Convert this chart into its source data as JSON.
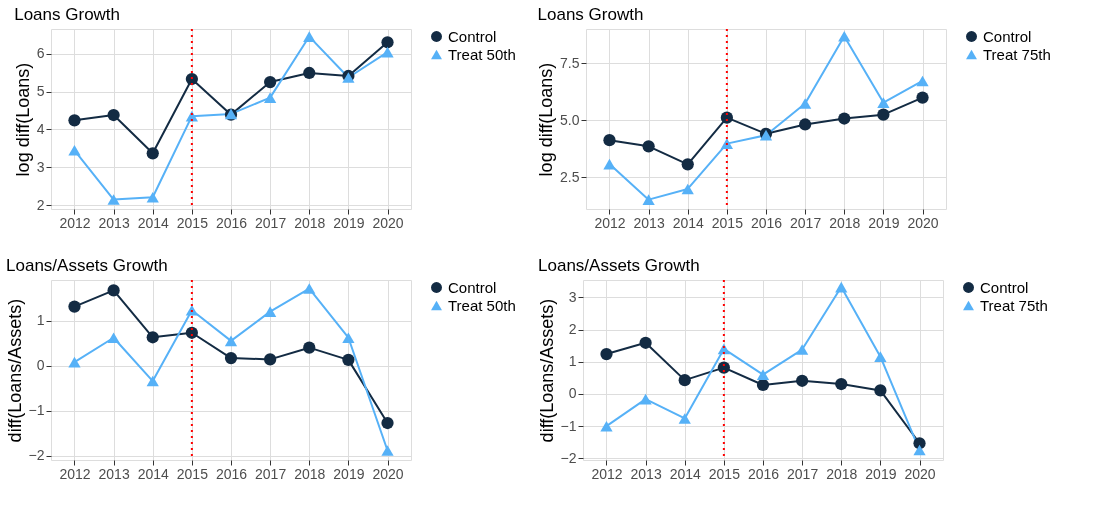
{
  "chart_data": [
    {
      "type": "line",
      "title": "Loans Growth",
      "ylabel": "log diff(Loans)",
      "x": [
        2012,
        2013,
        2014,
        2015,
        2016,
        2017,
        2018,
        2019,
        2020
      ],
      "xlim": [
        2011.4,
        2020.6
      ],
      "xticks": [
        2012,
        2013,
        2014,
        2015,
        2016,
        2017,
        2018,
        2019,
        2020
      ],
      "ylim": [
        1.9,
        6.65
      ],
      "yticks": [
        2,
        3,
        4,
        5,
        6
      ],
      "grid": true,
      "legend": "right",
      "series": [
        {
          "name": "Control",
          "color": "#132b43",
          "marker": "circle",
          "values": [
            4.24,
            4.38,
            3.37,
            5.33,
            4.39,
            5.25,
            5.49,
            5.41,
            6.3
          ]
        },
        {
          "name": "Treat 50th",
          "color": "#56b1f7",
          "marker": "triangle",
          "values": [
            3.45,
            2.15,
            2.21,
            4.35,
            4.41,
            4.84,
            6.45,
            5.37,
            6.04
          ]
        }
      ],
      "ref_lines": [
        {
          "axis": "x",
          "value": 2015,
          "color": "#ff0000",
          "line_style": "dotted"
        }
      ]
    },
    {
      "type": "line",
      "title": "Loans Growth",
      "ylabel": "log diff(Loans)",
      "x": [
        2012,
        2013,
        2014,
        2015,
        2016,
        2017,
        2018,
        2019,
        2020
      ],
      "xlim": [
        2011.4,
        2020.6
      ],
      "xticks": [
        2012,
        2013,
        2014,
        2015,
        2016,
        2017,
        2018,
        2019,
        2020
      ],
      "ylim": [
        1.1,
        9.0
      ],
      "yticks": [
        {
          "value": 2.5,
          "label": "2.5"
        },
        {
          "value": 5,
          "label": "5.0"
        },
        {
          "value": 7.5,
          "label": "7.5"
        }
      ],
      "grid": true,
      "legend": "right",
      "series": [
        {
          "name": "Control",
          "color": "#132b43",
          "marker": "circle",
          "values": [
            4.12,
            3.85,
            3.06,
            5.11,
            4.4,
            4.81,
            5.07,
            5.24,
            5.99
          ]
        },
        {
          "name": "Treat 75th",
          "color": "#56b1f7",
          "marker": "triangle",
          "values": [
            3.07,
            1.51,
            1.98,
            3.97,
            4.34,
            5.73,
            8.68,
            5.77,
            6.72
          ]
        }
      ],
      "ref_lines": [
        {
          "axis": "x",
          "value": 2015,
          "color": "#ff0000",
          "line_style": "dotted"
        }
      ]
    },
    {
      "type": "line",
      "title": "Loans/Assets Growth",
      "ylabel": "diff(Loans/Assets)",
      "x": [
        2012,
        2013,
        2014,
        2015,
        2016,
        2017,
        2018,
        2019,
        2020
      ],
      "xlim": [
        2011.4,
        2020.6
      ],
      "xticks": [
        2012,
        2013,
        2014,
        2015,
        2016,
        2017,
        2018,
        2019,
        2020
      ],
      "ylim": [
        -2.09,
        1.9
      ],
      "yticks": [
        -2,
        -1,
        0,
        1
      ],
      "grid": true,
      "legend": "right",
      "series": [
        {
          "name": "Control",
          "color": "#132b43",
          "marker": "circle",
          "values": [
            1.31,
            1.67,
            0.63,
            0.73,
            0.17,
            0.14,
            0.4,
            0.13,
            -1.27
          ]
        },
        {
          "name": "Treat 50th",
          "color": "#56b1f7",
          "marker": "triangle",
          "values": [
            0.08,
            0.62,
            -0.34,
            1.23,
            0.55,
            1.2,
            1.71,
            0.62,
            -1.88
          ]
        }
      ],
      "ref_lines": [
        {
          "axis": "x",
          "value": 2015,
          "color": "#ff0000",
          "line_style": "dotted"
        }
      ]
    },
    {
      "type": "line",
      "title": "Loans/Assets Growth",
      "ylabel": "diff(Loans/Assets)",
      "x": [
        2012,
        2013,
        2014,
        2015,
        2016,
        2017,
        2018,
        2019,
        2020
      ],
      "xlim": [
        2011.4,
        2020.6
      ],
      "xticks": [
        2012,
        2013,
        2014,
        2015,
        2016,
        2017,
        2018,
        2019,
        2020
      ],
      "ylim": [
        -2.05,
        3.54
      ],
      "yticks": [
        -2,
        -1,
        0,
        1,
        2,
        3
      ],
      "grid": true,
      "legend": "right",
      "series": [
        {
          "name": "Control",
          "color": "#132b43",
          "marker": "circle",
          "values": [
            1.24,
            1.59,
            0.43,
            0.82,
            0.28,
            0.41,
            0.31,
            0.11,
            -1.53
          ]
        },
        {
          "name": "Treat 75th",
          "color": "#56b1f7",
          "marker": "triangle",
          "values": [
            -1.0,
            -0.16,
            -0.76,
            1.4,
            0.6,
            1.38,
            3.32,
            1.16,
            -1.74
          ]
        }
      ],
      "ref_lines": [
        {
          "axis": "x",
          "value": 2015,
          "color": "#ff0000",
          "line_style": "dotted"
        }
      ]
    }
  ]
}
